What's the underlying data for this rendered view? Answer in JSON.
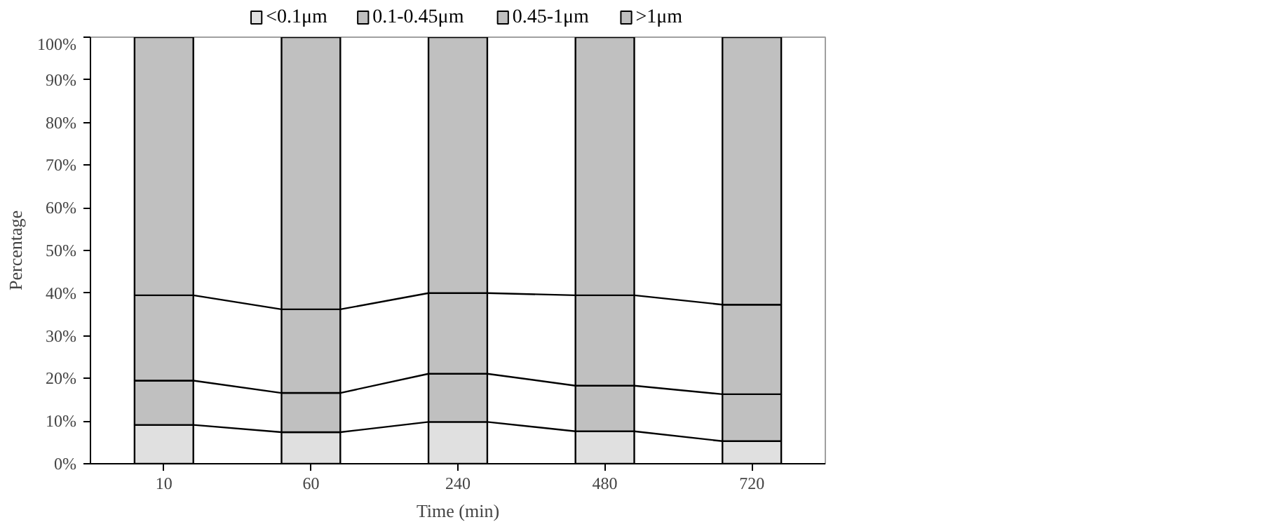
{
  "chart_data": {
    "type": "bar",
    "stacked": true,
    "xlabel": "Time (min)",
    "ylabel": "Percentage",
    "categories": [
      "10",
      "60",
      "240",
      "480",
      "720"
    ],
    "series": [
      {
        "name": "<0.1μm",
        "color": "#e0e0e0",
        "values": [
          9.1,
          7.4,
          9.8,
          7.6,
          5.3
        ]
      },
      {
        "name": "0.1-0.45μm",
        "color": "#c0c0c0",
        "values": [
          10.4,
          9.2,
          11.3,
          10.7,
          11.0
        ]
      },
      {
        "name": "0.45-1μm",
        "color": "#c0c0c0",
        "values": [
          20.0,
          19.6,
          18.9,
          21.2,
          21.0
        ]
      },
      {
        "name": ">1μm",
        "color": "#c0c0c0",
        "values": [
          60.5,
          63.8,
          60.0,
          60.5,
          62.7
        ]
      }
    ],
    "ylim": [
      0,
      100
    ],
    "yticks": [
      {
        "value": 0,
        "label": "0%"
      },
      {
        "value": 10,
        "label": "10%"
      },
      {
        "value": 20,
        "label": "20%"
      },
      {
        "value": 30,
        "label": "30%"
      },
      {
        "value": 40,
        "label": "40%"
      },
      {
        "value": 50,
        "label": "50%"
      },
      {
        "value": 60,
        "label": "60%"
      },
      {
        "value": 70,
        "label": "70%"
      },
      {
        "value": 80,
        "label": "80%"
      },
      {
        "value": 90,
        "label": "90%"
      },
      {
        "value": 100,
        "label": "100%"
      }
    ],
    "grid": false,
    "legend": "top"
  }
}
